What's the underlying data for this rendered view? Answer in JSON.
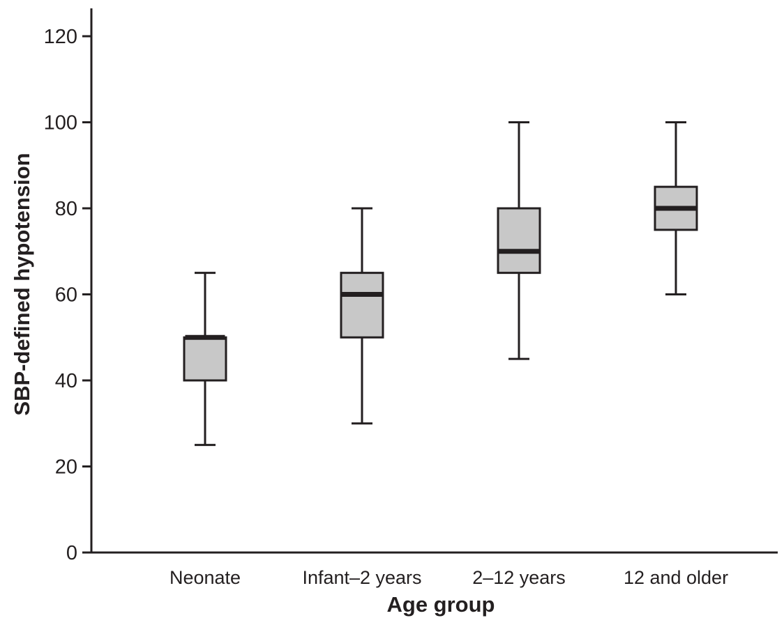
{
  "chart_data": {
    "type": "box",
    "title": "",
    "xlabel": "Age group",
    "ylabel": "SBP-defined hypotension",
    "ylim": [
      0,
      120
    ],
    "yticks": [
      0,
      20,
      40,
      60,
      80,
      100,
      120
    ],
    "grid": false,
    "categories": [
      "Neonate",
      "Infant–2 years",
      "2–12 years",
      "12 and older"
    ],
    "boxes": [
      {
        "min": 25,
        "q1": 40,
        "median": 50,
        "q3": 50,
        "max": 65
      },
      {
        "min": 30,
        "q1": 50,
        "median": 60,
        "q3": 65,
        "max": 80
      },
      {
        "min": 45,
        "q1": 65,
        "median": 70,
        "q3": 80,
        "max": 100
      },
      {
        "min": 60,
        "q1": 75,
        "median": 80,
        "q3": 85,
        "max": 100
      }
    ],
    "colors": {
      "box_fill": "#c8c8c8",
      "stroke": "#231f20",
      "median": "#231f20"
    }
  }
}
